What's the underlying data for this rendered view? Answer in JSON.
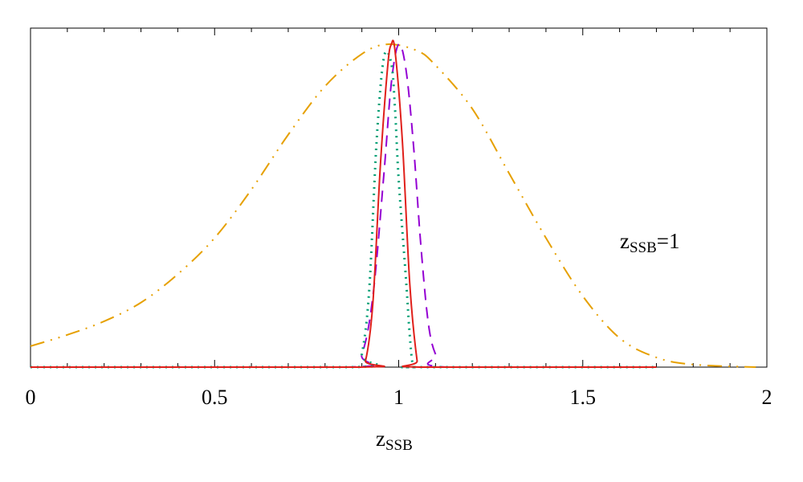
{
  "chart_data": {
    "type": "line",
    "title": "",
    "xlabel": "z",
    "xlabel_sub": "SSB",
    "ylabel": "",
    "xlim": [
      0,
      2
    ],
    "ylim": [
      0,
      1.05
    ],
    "xticks": [
      "0",
      "0.5",
      "1",
      "1.5",
      "2"
    ],
    "annotation": {
      "main": "z",
      "sub": "SSB",
      "suffix": "=1"
    },
    "grid": false,
    "legend": "none",
    "series": [
      {
        "color": "#e6a000",
        "dash": "dash-dot-dot",
        "x": [
          0,
          0.1,
          0.2,
          0.3,
          0.4,
          0.5,
          0.6,
          0.7,
          0.8,
          0.9,
          0.97,
          1.05,
          1.1,
          1.2,
          1.3,
          1.4,
          1.5,
          1.6,
          1.7,
          1.8,
          1.97
        ],
        "y": [
          0.065,
          0.1,
          0.142,
          0.2,
          0.288,
          0.4,
          0.55,
          0.72,
          0.87,
          0.97,
          1.0,
          0.98,
          0.935,
          0.8,
          0.6,
          0.4,
          0.22,
          0.09,
          0.03,
          0.008,
          0.0
        ]
      },
      {
        "color": "#9400d3",
        "dash": "dashed",
        "x": [
          0,
          0.86,
          0.9,
          0.93,
          0.96,
          0.98,
          1.0,
          1.02,
          1.04,
          1.06,
          1.08,
          1.1,
          1.13,
          1.7
        ],
        "y": [
          0,
          0,
          0.04,
          0.22,
          0.6,
          0.88,
          1.0,
          0.92,
          0.69,
          0.38,
          0.14,
          0.04,
          0.0,
          0
        ]
      },
      {
        "color": "#009e73",
        "dash": "dotted",
        "x": [
          0,
          0.88,
          0.9,
          0.92,
          0.94,
          0.96,
          0.98,
          0.99,
          1.0,
          1.02,
          1.03,
          1.04,
          1.06,
          1.7
        ],
        "y": [
          0,
          0,
          0.04,
          0.24,
          0.7,
          0.96,
          0.94,
          0.8,
          0.58,
          0.27,
          0.1,
          0.0,
          0.0,
          0
        ]
      },
      {
        "color": "#e0201b",
        "dash": "solid",
        "x": [
          0,
          0.89,
          0.91,
          0.93,
          0.95,
          0.97,
          0.98,
          0.99,
          1.01,
          1.03,
          1.05,
          1.06,
          1.7
        ],
        "y": [
          0,
          0,
          0.02,
          0.2,
          0.62,
          0.93,
          1.0,
          0.98,
          0.7,
          0.26,
          0.02,
          0.0,
          0
        ]
      }
    ]
  }
}
